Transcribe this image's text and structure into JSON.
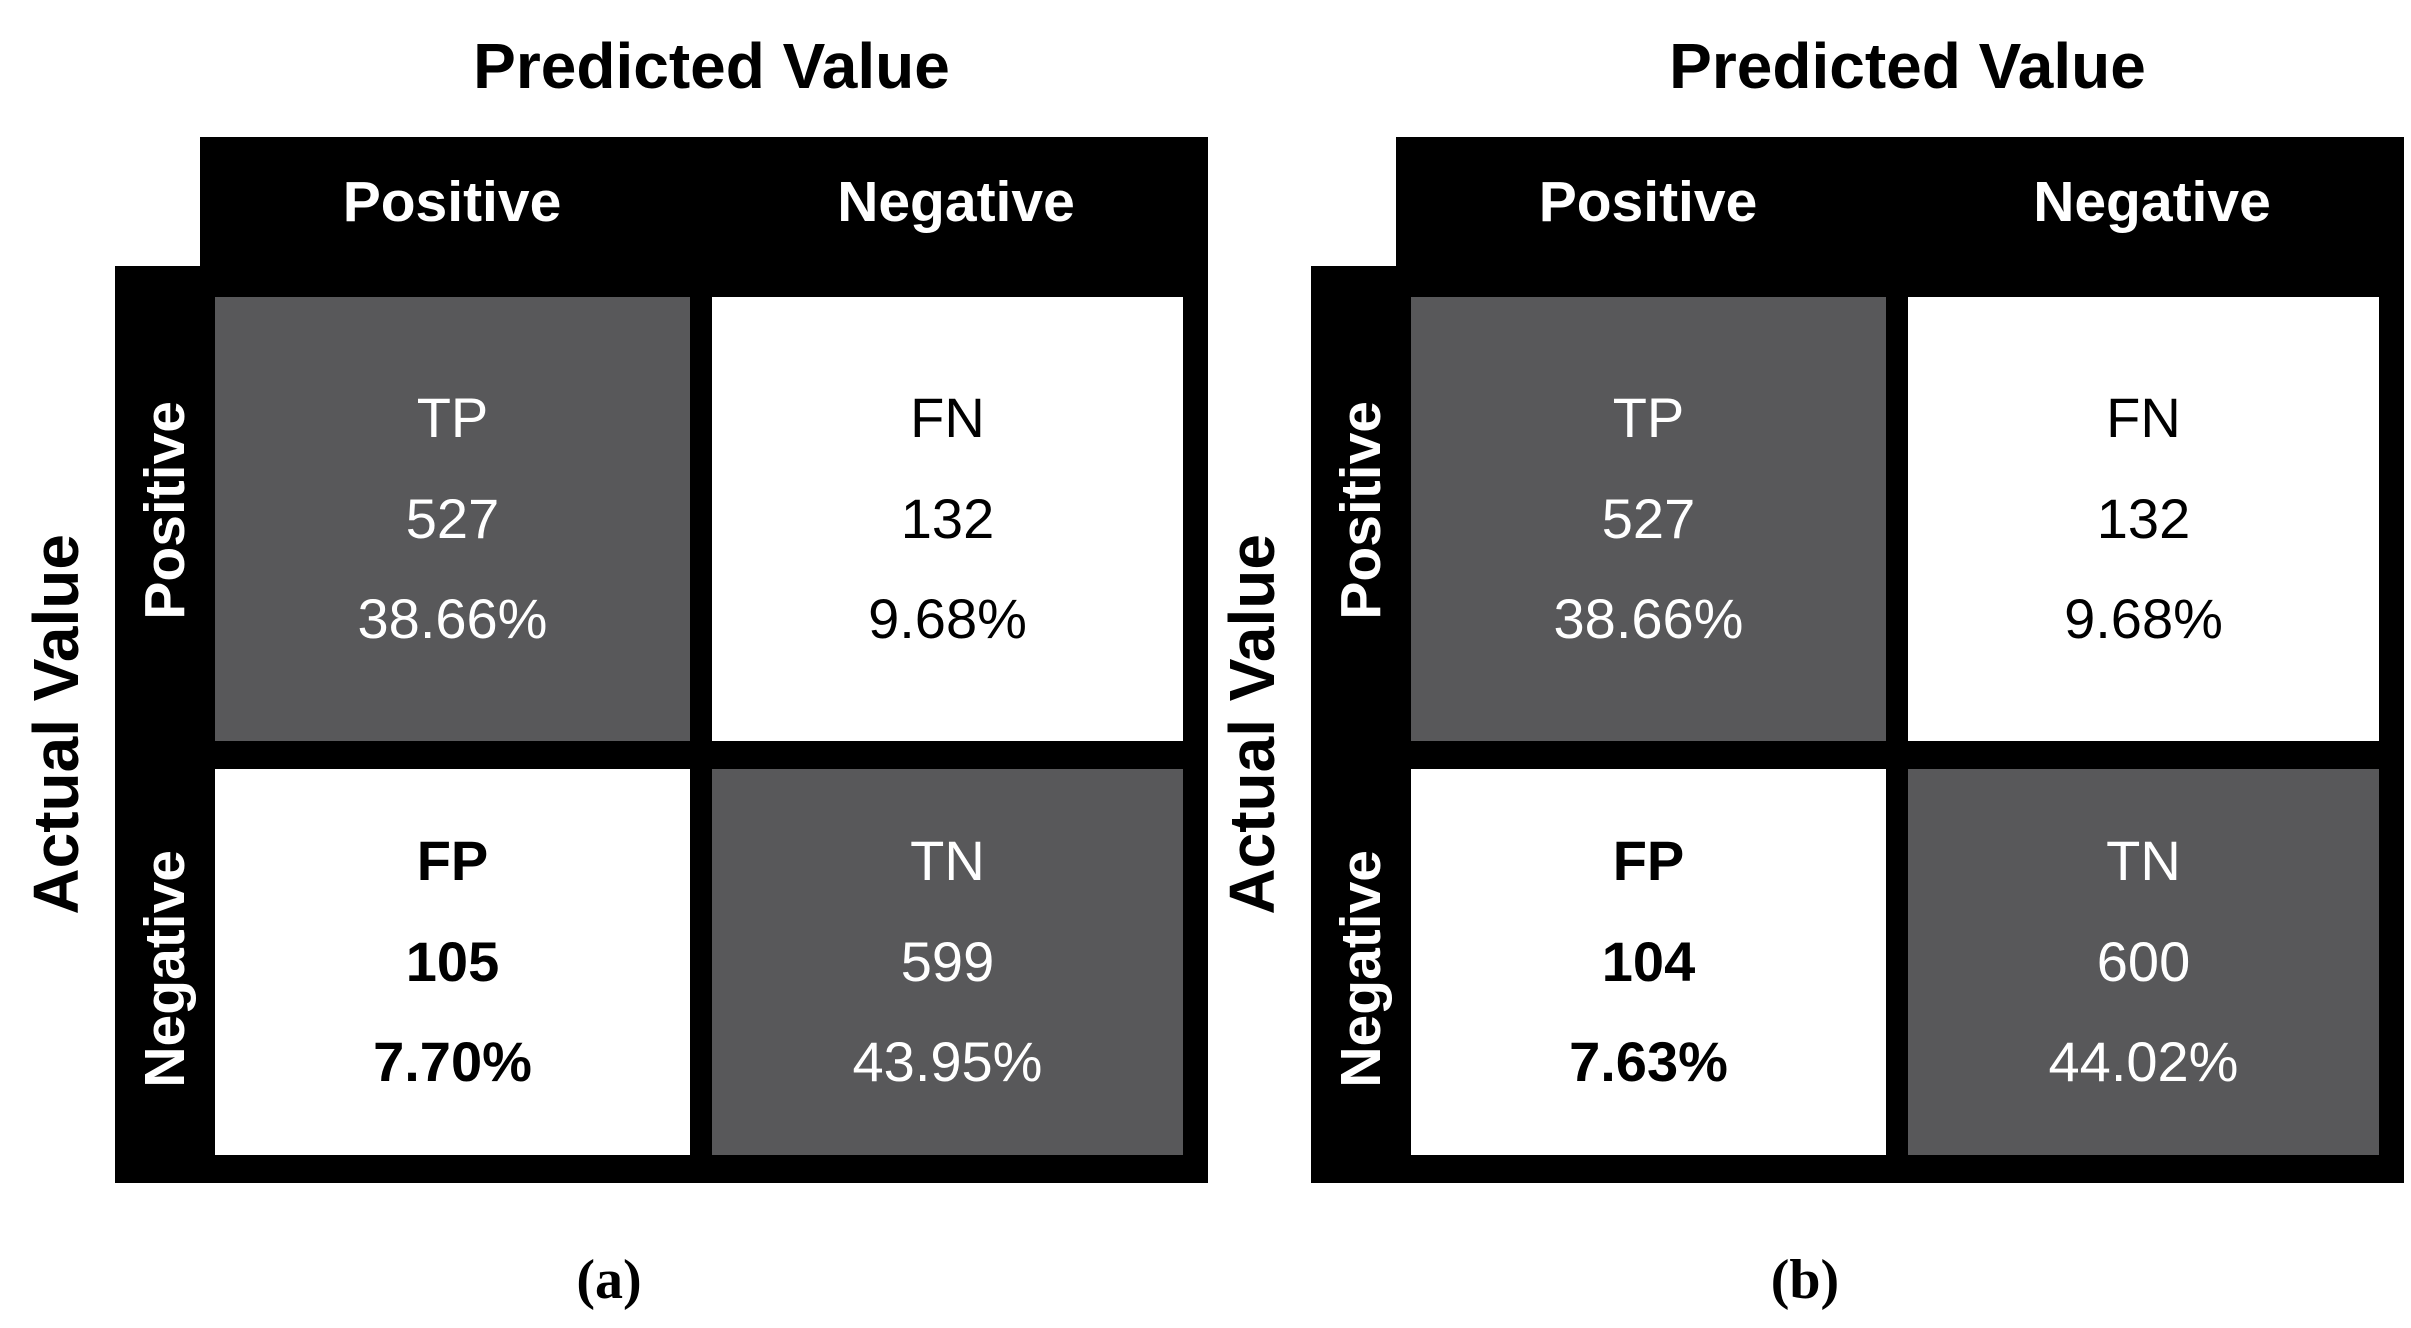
{
  "colors": {
    "cell_dark": "#58585a",
    "cell_light": "#ffffff",
    "header_bar": "#000000",
    "header_text": "#ffffff",
    "body_text": "#000000"
  },
  "matrices": [
    {
      "id": "a",
      "caption": "(a)",
      "col_axis_title": "Predicted Value",
      "row_axis_title": "Actual Value",
      "col_headers": [
        "Positive",
        "Negative"
      ],
      "row_headers": [
        "Positive",
        "Negative"
      ],
      "cells": [
        {
          "label": "TP",
          "count": "527",
          "percent": "38.66%",
          "variant": "dark"
        },
        {
          "label": "FN",
          "count": "132",
          "percent": "9.68%",
          "variant": "light"
        },
        {
          "label": "FP",
          "count": "105",
          "percent": "7.70%",
          "variant": "light bold"
        },
        {
          "label": "TN",
          "count": "599",
          "percent": "43.95%",
          "variant": "dark"
        }
      ]
    },
    {
      "id": "b",
      "caption": "(b)",
      "col_axis_title": "Predicted Value",
      "row_axis_title": "Actual Value",
      "col_headers": [
        "Positive",
        "Negative"
      ],
      "row_headers": [
        "Positive",
        "Negative"
      ],
      "cells": [
        {
          "label": "TP",
          "count": "527",
          "percent": "38.66%",
          "variant": "dark"
        },
        {
          "label": "FN",
          "count": "132",
          "percent": "9.68%",
          "variant": "light"
        },
        {
          "label": "FP",
          "count": "104",
          "percent": "7.63%",
          "variant": "light bold"
        },
        {
          "label": "TN",
          "count": "600",
          "percent": "44.02%",
          "variant": "dark"
        }
      ]
    }
  ],
  "chart_data": [
    {
      "type": "heatmap",
      "title": "Confusion matrix (a)",
      "xlabel": "Predicted Value",
      "ylabel": "Actual Value",
      "x_categories": [
        "Positive",
        "Negative"
      ],
      "y_categories": [
        "Positive",
        "Negative"
      ],
      "cell_labels": [
        [
          "TP",
          "FN"
        ],
        [
          "FP",
          "TN"
        ]
      ],
      "counts": [
        [
          527,
          132
        ],
        [
          105,
          599
        ]
      ],
      "percents": [
        [
          38.66,
          9.68
        ],
        [
          7.7,
          43.95
        ]
      ],
      "shaded_cells": [
        "TP",
        "TN"
      ],
      "caption": "(a)"
    },
    {
      "type": "heatmap",
      "title": "Confusion matrix (b)",
      "xlabel": "Predicted Value",
      "ylabel": "Actual Value",
      "x_categories": [
        "Positive",
        "Negative"
      ],
      "y_categories": [
        "Positive",
        "Negative"
      ],
      "cell_labels": [
        [
          "TP",
          "FN"
        ],
        [
          "FP",
          "TN"
        ]
      ],
      "counts": [
        [
          527,
          132
        ],
        [
          104,
          600
        ]
      ],
      "percents": [
        [
          38.66,
          9.68
        ],
        [
          7.63,
          44.02
        ]
      ],
      "shaded_cells": [
        "TP",
        "TN"
      ],
      "caption": "(b)"
    }
  ]
}
